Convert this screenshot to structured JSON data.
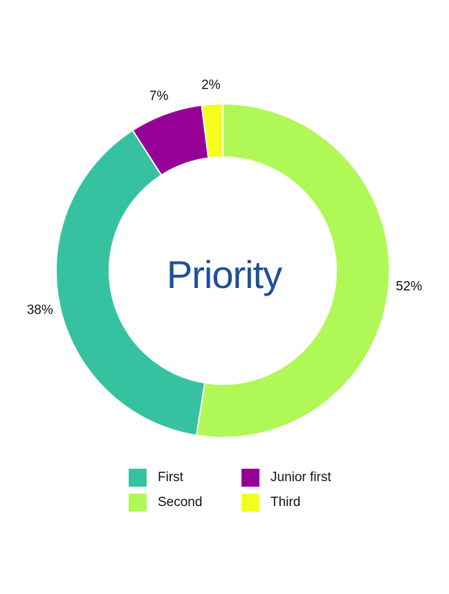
{
  "chart_data": {
    "type": "pie",
    "title": "Priority",
    "donut": true,
    "categories": [
      "First",
      "Second",
      "Junior first",
      "Third"
    ],
    "values": [
      38,
      52,
      7,
      2
    ],
    "labels": [
      "38%",
      "52%",
      "7%",
      "2%"
    ],
    "colors": [
      "#36c2a0",
      "#b0f855",
      "#970097",
      "#f4ff1e"
    ],
    "legend_position": "bottom"
  },
  "legend": [
    {
      "label": "First",
      "color": "#36c2a0"
    },
    {
      "label": "Junior first",
      "color": "#970097"
    },
    {
      "label": "Second",
      "color": "#b0f855"
    },
    {
      "label": "Third",
      "color": "#f4ff1e"
    }
  ]
}
